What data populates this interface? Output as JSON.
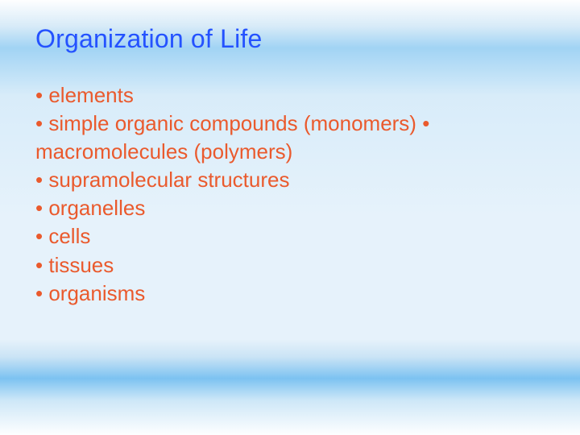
{
  "title": "Organization of Life",
  "title_color": "#2452ff",
  "body_color": "#ea5a2d",
  "bullet": "•",
  "items": [
    "elements",
    "simple organic compounds (monomers)",
    "macromolecules (polymers)",
    "supramolecular structures",
    "organelles",
    "cells",
    "tissues",
    "organisms"
  ],
  "background": {
    "base": "#e6f2fb",
    "highlight": "#7fc3f0"
  },
  "title_fontsize": 32,
  "body_fontsize": 26,
  "slide_width": 720,
  "slide_height": 540
}
